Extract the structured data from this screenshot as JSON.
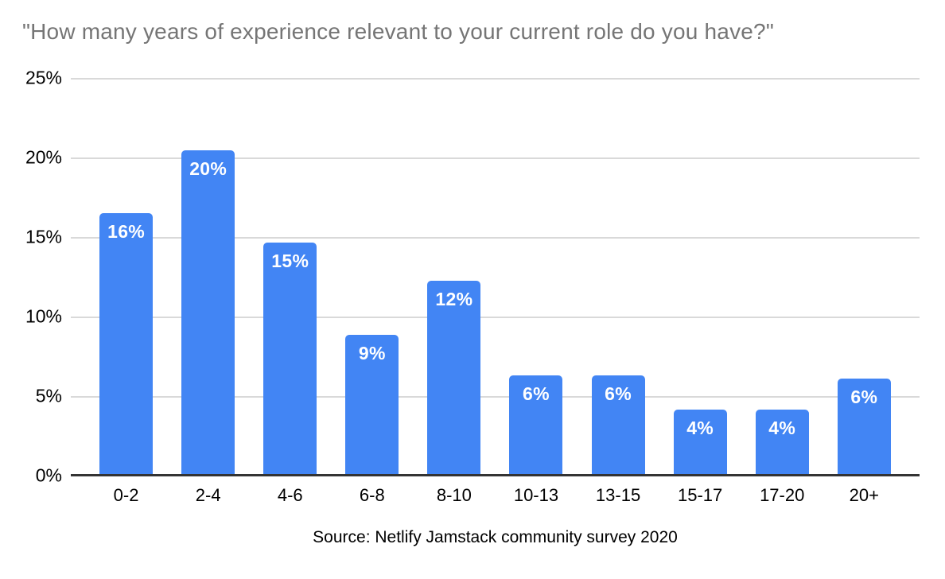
{
  "chart_data": {
    "type": "bar",
    "title": "\"How many years of experience relevant to your current role do you have?\"",
    "source_note": "Source: Netlify Jamstack community survey 2020",
    "categories": [
      "0-2",
      "2-4",
      "4-6",
      "6-8",
      "8-10",
      "10-13",
      "13-15",
      "15-17",
      "17-20",
      "20+"
    ],
    "values": [
      16,
      20,
      15,
      9,
      12,
      6,
      6,
      4,
      4,
      6
    ],
    "value_labels": [
      "16%",
      "20%",
      "15%",
      "9%",
      "12%",
      "6%",
      "6%",
      "4%",
      "4%",
      "6%"
    ],
    "exact_values": [
      16.55,
      20.5,
      14.7,
      8.9,
      12.3,
      6.35,
      6.35,
      4.2,
      4.2,
      6.15
    ],
    "xlabel": "",
    "ylabel": "",
    "ylim": [
      0,
      25
    ],
    "y_ticks": [
      "0%",
      "5%",
      "10%",
      "15%",
      "20%",
      "25%"
    ],
    "grid": true,
    "legend": "none",
    "colors": {
      "bar": "#4285F4",
      "value_label": "#FFFFFF",
      "title": "#757575",
      "axis_labels": "#000000",
      "gridline": "#D9D9D9",
      "axis_line": "#333333",
      "background": "#FFFFFF"
    }
  }
}
